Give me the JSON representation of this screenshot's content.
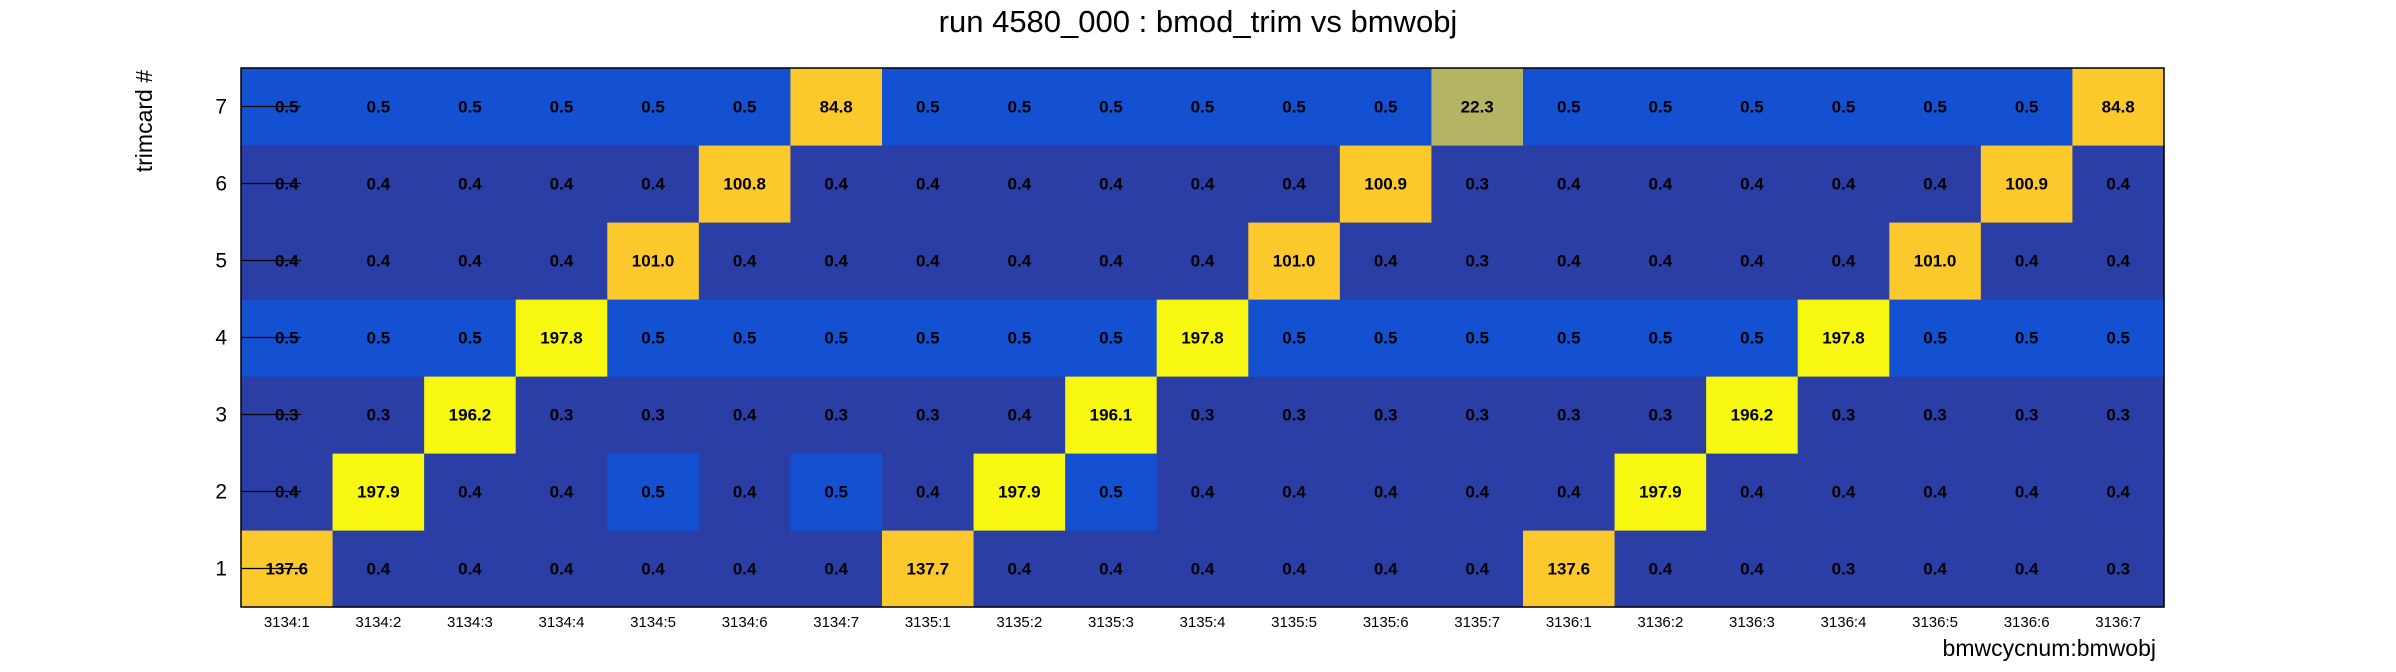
{
  "chart_data": {
    "type": "heatmap",
    "title": "run 4580_000 : bmod_trim vs bmwobj",
    "xlabel": "bmwcycnum:bmwobj",
    "ylabel": "trimcard #",
    "x_categories": [
      "3134:1",
      "3134:2",
      "3134:3",
      "3134:4",
      "3134:5",
      "3134:6",
      "3134:7",
      "3135:1",
      "3135:2",
      "3135:3",
      "3135:4",
      "3135:5",
      "3135:6",
      "3135:7",
      "3136:1",
      "3136:2",
      "3136:3",
      "3136:4",
      "3136:5",
      "3136:6",
      "3136:7"
    ],
    "y_categories": [
      "1",
      "2",
      "3",
      "4",
      "5",
      "6",
      "7"
    ],
    "values": [
      [
        "137.6",
        "0.4",
        "0.4",
        "0.4",
        "0.4",
        "0.4",
        "0.4",
        "137.7",
        "0.4",
        "0.4",
        "0.4",
        "0.4",
        "0.4",
        "0.4",
        "137.6",
        "0.4",
        "0.4",
        "0.3",
        "0.4",
        "0.4",
        "0.3"
      ],
      [
        "0.4",
        "197.9",
        "0.4",
        "0.4",
        "0.5",
        "0.4",
        "0.5",
        "0.4",
        "197.9",
        "0.5",
        "0.4",
        "0.4",
        "0.4",
        "0.4",
        "0.4",
        "197.9",
        "0.4",
        "0.4",
        "0.4",
        "0.4",
        "0.4"
      ],
      [
        "0.3",
        "0.3",
        "196.2",
        "0.3",
        "0.3",
        "0.4",
        "0.3",
        "0.3",
        "0.4",
        "196.1",
        "0.3",
        "0.3",
        "0.3",
        "0.3",
        "0.3",
        "0.3",
        "196.2",
        "0.3",
        "0.3",
        "0.3",
        "0.3"
      ],
      [
        "0.5",
        "0.5",
        "0.5",
        "197.8",
        "0.5",
        "0.5",
        "0.5",
        "0.5",
        "0.5",
        "0.5",
        "197.8",
        "0.5",
        "0.5",
        "0.5",
        "0.5",
        "0.5",
        "0.5",
        "197.8",
        "0.5",
        "0.5",
        "0.5"
      ],
      [
        "0.4",
        "0.4",
        "0.4",
        "0.4",
        "101.0",
        "0.4",
        "0.4",
        "0.4",
        "0.4",
        "0.4",
        "0.4",
        "101.0",
        "0.4",
        "0.3",
        "0.4",
        "0.4",
        "0.4",
        "0.4",
        "101.0",
        "0.4",
        "0.4"
      ],
      [
        "0.4",
        "0.4",
        "0.4",
        "0.4",
        "0.4",
        "100.8",
        "0.4",
        "0.4",
        "0.4",
        "0.4",
        "0.4",
        "0.4",
        "100.9",
        "0.3",
        "0.4",
        "0.4",
        "0.4",
        "0.4",
        "0.4",
        "100.9",
        "0.4"
      ],
      [
        "0.5",
        "0.5",
        "0.5",
        "0.5",
        "0.5",
        "0.5",
        "84.8",
        "0.5",
        "0.5",
        "0.5",
        "0.5",
        "0.5",
        "0.5",
        "22.3",
        "0.5",
        "0.5",
        "0.5",
        "0.5",
        "0.5",
        "0.5",
        "84.8"
      ]
    ],
    "colors": {
      "dark_blue": "#2a3ea6",
      "blue": "#1450d2",
      "olive": "#b3b562",
      "gold": "#fcc92c",
      "yellow": "#f7f712"
    }
  }
}
